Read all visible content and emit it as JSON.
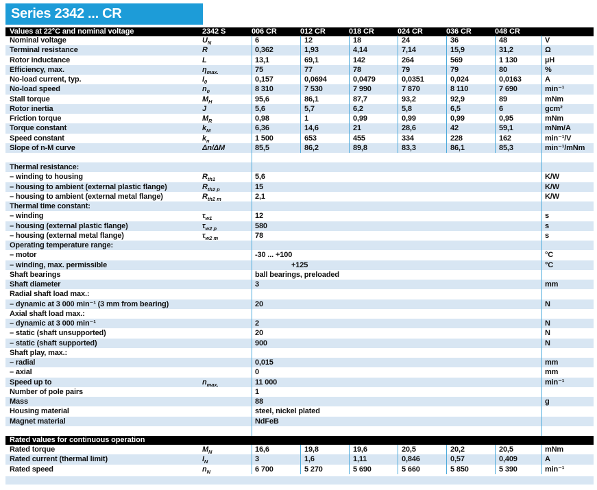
{
  "colors": {
    "accent_cyan": "#1d9cd8",
    "row_blue": "#d8e6f3",
    "divider_blue": "#4fabdc",
    "bar_black": "#000000",
    "text": "#111111"
  },
  "title": "Series 2342 ... CR",
  "table1_header": {
    "label": "Values at 22°C and nominal voltage",
    "series": "2342 S",
    "columns": [
      "006 CR",
      "012 CR",
      "018 CR",
      "024 CR",
      "036 CR",
      "048 CR"
    ]
  },
  "rated_header": {
    "label": "Rated values for continuous operation"
  },
  "main_block": {
    "start_blue": false,
    "rows": [
      {
        "kind": "cols",
        "label": "Nominal voltage",
        "sym": "U",
        "sub": "N",
        "values": [
          "6",
          "12",
          "18",
          "24",
          "36",
          "48"
        ],
        "unit": "V"
      },
      {
        "kind": "cols",
        "label": "Terminal resistance",
        "sym": "R",
        "sub": "",
        "values": [
          "0,362",
          "1,93",
          "4,14",
          "7,14",
          "15,9",
          "31,2"
        ],
        "unit": "Ω"
      },
      {
        "kind": "cols",
        "label": "Rotor inductance",
        "sym": "L",
        "sub": "",
        "values": [
          "13,1",
          "69,1",
          "142",
          "264",
          "569",
          "1 130"
        ],
        "unit": "µH"
      },
      {
        "kind": "cols",
        "label": "Efficiency, max.",
        "sym": "η",
        "sub": "max.",
        "values": [
          "75",
          "77",
          "78",
          "79",
          "79",
          "80"
        ],
        "unit": "%"
      },
      {
        "kind": "cols",
        "label": "No-load current, typ.",
        "sym": "I",
        "sub": "0",
        "values": [
          "0,157",
          "0,0694",
          "0,0479",
          "0,0351",
          "0,024",
          "0,0163"
        ],
        "unit": "A"
      },
      {
        "kind": "cols",
        "label": "No-load speed",
        "sym": "n",
        "sub": "0",
        "values": [
          "8 310",
          "7 530",
          "7 990",
          "7 870",
          "8 110",
          "7 690"
        ],
        "unit": "min⁻¹"
      },
      {
        "kind": "cols",
        "label": "Stall torque",
        "sym": "M",
        "sub": "H",
        "values": [
          "95,6",
          "86,1",
          "87,7",
          "93,2",
          "92,9",
          "89"
        ],
        "unit": "mNm"
      },
      {
        "kind": "cols",
        "label": "Rotor inertia",
        "sym": "J",
        "sub": "",
        "values": [
          "5,6",
          "5,7",
          "6,2",
          "5,8",
          "6,5",
          "6"
        ],
        "unit": "gcm²"
      },
      {
        "kind": "cols",
        "label": "Friction torque",
        "sym": "M",
        "sub": "R",
        "values": [
          "0,98",
          "1",
          "0,99",
          "0,99",
          "0,99",
          "0,95"
        ],
        "unit": "mNm"
      },
      {
        "kind": "cols",
        "label": "Torque constant",
        "sym": "k",
        "sub": "M",
        "values": [
          "6,36",
          "14,6",
          "21",
          "28,6",
          "42",
          "59,1"
        ],
        "unit": "mNm/A"
      },
      {
        "kind": "cols",
        "label": "Speed constant",
        "sym": "k",
        "sub": "n",
        "values": [
          "1 500",
          "653",
          "455",
          "334",
          "228",
          "162"
        ],
        "unit": "min⁻¹/V"
      },
      {
        "kind": "cols",
        "label": "Slope of n-M curve",
        "sym": "Δn/ΔM",
        "sub": "",
        "values": [
          "85,5",
          "86,2",
          "89,8",
          "83,3",
          "86,1",
          "85,3"
        ],
        "unit": "min⁻¹/mNm"
      }
    ]
  },
  "detail_block": {
    "start_blue": true,
    "rows": [
      {
        "kind": "head",
        "label": "Thermal resistance:"
      },
      {
        "kind": "span",
        "label": "– winding to housing",
        "sym": "R",
        "sub": "th1",
        "value": "5,6",
        "unit": "K/W"
      },
      {
        "kind": "span",
        "label": "– housing to ambient (external plastic flange)",
        "sym": "R",
        "sub": "th2 p",
        "value": "15",
        "unit": "K/W"
      },
      {
        "kind": "span",
        "label": "– housing to ambient (external metal flange)",
        "sym": "R",
        "sub": "th2 m",
        "value": "2,1",
        "unit": "K/W"
      },
      {
        "kind": "head",
        "label": "Thermal time constant:"
      },
      {
        "kind": "span",
        "label": "– winding",
        "sym": "τ",
        "sub": "w1",
        "value": "12",
        "unit": "s"
      },
      {
        "kind": "span",
        "label": "– housing (external plastic flange)",
        "sym": "τ",
        "sub": "w2 p",
        "value": "580",
        "unit": "s"
      },
      {
        "kind": "span",
        "label": "– housing (external metal flange)",
        "sym": "τ",
        "sub": "w2 m",
        "value": "78",
        "unit": "s"
      },
      {
        "kind": "head",
        "label": "Operating temperature range:"
      },
      {
        "kind": "span",
        "label": "– motor",
        "sym": "",
        "sub": "",
        "value": "-30 ... +100",
        "unit": "°C"
      },
      {
        "kind": "span",
        "label": "– winding, max. permissible",
        "sym": "",
        "sub": "",
        "value": "+125",
        "unit": "°C",
        "indent": true
      },
      {
        "kind": "span",
        "label": "Shaft bearings",
        "sym": "",
        "sub": "",
        "value": "ball bearings, preloaded",
        "unit": ""
      },
      {
        "kind": "span",
        "label": "Shaft diameter",
        "sym": "",
        "sub": "",
        "value": "3",
        "unit": "mm"
      },
      {
        "kind": "head",
        "label": "Radial shaft load max.:"
      },
      {
        "kind": "span",
        "label": "– dynamic at 3 000 min⁻¹ (3 mm from bearing)",
        "sym": "",
        "sub": "",
        "value": "20",
        "unit": "N"
      },
      {
        "kind": "head",
        "label": "Axial shaft load max.:"
      },
      {
        "kind": "span",
        "label": "– dynamic at 3 000 min⁻¹",
        "sym": "",
        "sub": "",
        "value": "2",
        "unit": "N"
      },
      {
        "kind": "span",
        "label": "– static (shaft unsupported)",
        "sym": "",
        "sub": "",
        "value": "20",
        "unit": "N"
      },
      {
        "kind": "span",
        "label": "– static (shaft supported)",
        "sym": "",
        "sub": "",
        "value": "900",
        "unit": "N"
      },
      {
        "kind": "head",
        "label": "Shaft play, max.:"
      },
      {
        "kind": "span",
        "label": "– radial",
        "sym": "",
        "sub": "",
        "value": "0,015",
        "unit": "mm"
      },
      {
        "kind": "span",
        "label": "– axial",
        "sym": "",
        "sub": "",
        "value": "0",
        "unit": "mm"
      },
      {
        "kind": "span",
        "label": "Speed up to",
        "sym": "n",
        "sub": "max.",
        "value": "11 000",
        "unit": "min⁻¹"
      },
      {
        "kind": "span",
        "label": "Number of pole pairs",
        "sym": "",
        "sub": "",
        "value": "1",
        "unit": ""
      },
      {
        "kind": "span",
        "label": "Mass",
        "sym": "",
        "sub": "",
        "value": "88",
        "unit": "g"
      },
      {
        "kind": "span",
        "label": "Housing material",
        "sym": "",
        "sub": "",
        "value": "steel, nickel plated",
        "unit": ""
      },
      {
        "kind": "span",
        "label": "Magnet material",
        "sym": "",
        "sub": "",
        "value": "NdFeB",
        "unit": ""
      }
    ]
  },
  "rated_block": {
    "start_blue": false,
    "rows": [
      {
        "kind": "cols",
        "label": "Rated torque",
        "sym": "M",
        "sub": "N",
        "values": [
          "16,6",
          "19,8",
          "19,6",
          "20,5",
          "20,2",
          "20,5"
        ],
        "unit": "mNm"
      },
      {
        "kind": "cols",
        "label": "Rated current (thermal limit)",
        "sym": "I",
        "sub": "N",
        "values": [
          "3",
          "1,6",
          "1,11",
          "0,846",
          "0,57",
          "0,409"
        ],
        "unit": "A"
      },
      {
        "kind": "cols",
        "label": "Rated speed",
        "sym": "n",
        "sub": "N",
        "values": [
          "6 700",
          "5 270",
          "5 690",
          "5 660",
          "5 850",
          "5 390"
        ],
        "unit": "min⁻¹"
      }
    ]
  }
}
